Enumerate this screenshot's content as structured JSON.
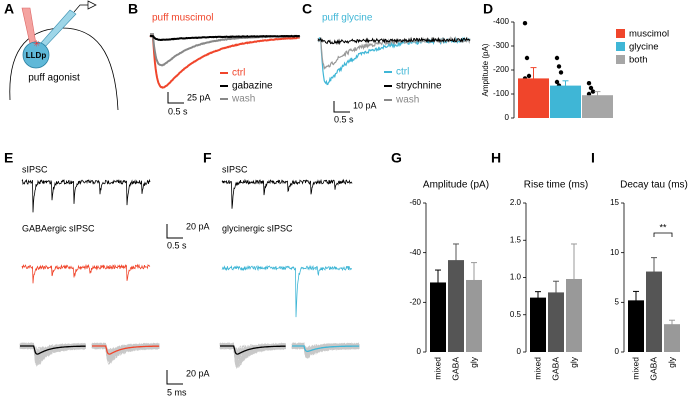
{
  "panels": {
    "A": {
      "letter": "A",
      "cell": "LLDp",
      "caption": "puff agonist"
    },
    "B": {
      "letter": "B",
      "title": "puff muscimol",
      "legend": [
        "ctrl",
        "gabazine",
        "wash"
      ],
      "scale_y": "25 pA",
      "scale_x": "0.5 s"
    },
    "C": {
      "letter": "C",
      "title": "puff glycine",
      "legend": [
        "ctrl",
        "strychnine",
        "wash"
      ],
      "scale_y": "10 pA",
      "scale_x": "0.5 s"
    },
    "E": {
      "letter": "E",
      "trace1": "sIPSC",
      "trace2": "GABAergic sIPSC",
      "scale_y": "20 pA",
      "scale_x": "0.5 s",
      "avg_scale_y": "20 pA",
      "avg_scale_x": "5 ms"
    },
    "F": {
      "letter": "F",
      "trace1": "sIPSC",
      "trace2": "glycinergic sIPSC"
    }
  },
  "chart_data": [
    {
      "letter": "D",
      "type": "bar",
      "ylabel": "Amplitude (pA)",
      "ylim": [
        0,
        -400
      ],
      "yticks": [
        0,
        -100,
        -200,
        -300,
        -400
      ],
      "series": [
        {
          "name": "muscimol",
          "color": "#f0452b",
          "values": [
            -165
          ],
          "errors": [
            45
          ],
          "points": [
            -395,
            -250,
            -175,
            -165,
            -90,
            -70,
            -55
          ]
        },
        {
          "name": "glycine",
          "color": "#3fb6d6",
          "values": [
            -135
          ],
          "errors": [
            20
          ],
          "points": [
            -250,
            -215,
            -190,
            -150,
            -135,
            -120,
            -100,
            -80,
            -65,
            -45
          ]
        },
        {
          "name": "both",
          "color": "#a6a6a6",
          "values": [
            -95
          ],
          "errors": [
            15
          ],
          "points": [
            -145,
            -125,
            -110,
            -100
          ]
        }
      ]
    },
    {
      "letter": "G",
      "type": "bar",
      "title": "Amplitude (pA)",
      "categories": [
        "mixed",
        "GABA",
        "gly"
      ],
      "values": [
        -28,
        -37,
        -29
      ],
      "errors": [
        5,
        6.5,
        7
      ],
      "colors": [
        "#000000",
        "#555555",
        "#999999"
      ],
      "ylim": [
        0,
        -60
      ],
      "yticks": [
        0,
        -20,
        -40,
        -60
      ]
    },
    {
      "letter": "H",
      "type": "bar",
      "title": "Rise time (ms)",
      "categories": [
        "mixed",
        "GABA",
        "gly"
      ],
      "values": [
        0.73,
        0.8,
        0.98
      ],
      "errors": [
        0.08,
        0.15,
        0.47
      ],
      "colors": [
        "#000000",
        "#555555",
        "#999999"
      ],
      "ylim": [
        0,
        2
      ],
      "yticks": [
        0,
        0.5,
        {
          "value": 1,
          "label": "1.0"
        },
        1.5,
        {
          "value": 2,
          "label": "2.0"
        }
      ]
    },
    {
      "letter": "I",
      "type": "bar",
      "title": "Decay tau (ms)",
      "categories": [
        "mixed",
        "GABA",
        "gly"
      ],
      "values": [
        5.2,
        8.1,
        2.8
      ],
      "errors": [
        0.9,
        1.4,
        0.4
      ],
      "colors": [
        "#000000",
        "#555555",
        "#999999"
      ],
      "ylim": [
        0,
        15
      ],
      "yticks": [
        0,
        5,
        10,
        15
      ],
      "annotation": "**"
    }
  ]
}
